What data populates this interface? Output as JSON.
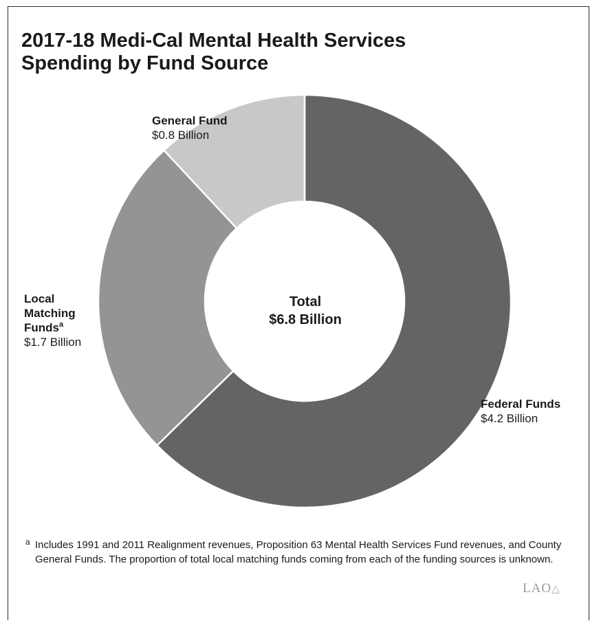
{
  "chart_data": {
    "type": "pie",
    "title": "2017-18 Medi-Cal Mental Health Services Spending by Fund Source",
    "title_lines": [
      "2017-18 Medi-Cal Mental Health Services",
      "Spending by Fund Source"
    ],
    "units": "Billion",
    "total": {
      "label": "Total",
      "value_text": "$6.8 Billion",
      "value": 6.8
    },
    "slices": [
      {
        "name": "Federal Funds",
        "value": 4.2,
        "value_text": "$4.2 Billion",
        "color": "#636466"
      },
      {
        "name": "Local Matching Funds",
        "footnote_mark": "a",
        "value": 1.7,
        "value_text": "$1.7 Billion",
        "color": "#939496",
        "name_lines": [
          "Local",
          "Matching",
          "Funds"
        ]
      },
      {
        "name": "General Fund",
        "value": 0.8,
        "value_text": "$0.8 Billion",
        "color": "#c7c8ca"
      }
    ],
    "start_angle_deg": 0,
    "direction": "clockwise",
    "footnote": {
      "mark": "a",
      "text": "Includes 1991 and 2011 Realignment revenues, Proposition 63 Mental Health Services Fund revenues, and County General Funds. The proportion of total local matching funds coming from each of the funding sources is unknown."
    },
    "source_logo": "LAO"
  }
}
